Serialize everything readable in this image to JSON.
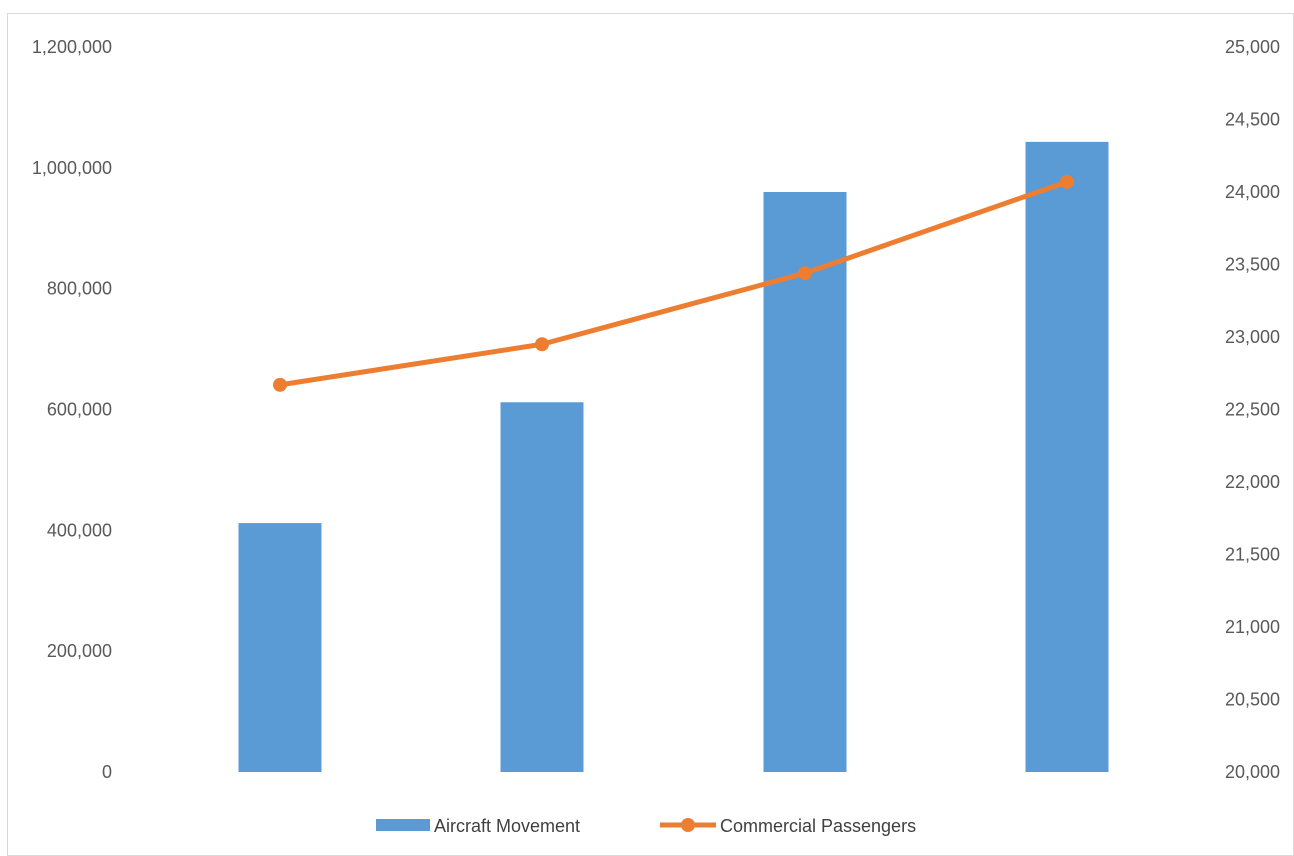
{
  "chart_data": {
    "type": "bar",
    "combo": "bar-line-dual-axis",
    "categories": [
      "",
      "",
      "",
      ""
    ],
    "series": [
      {
        "name": "Aircraft Movement",
        "type": "bar",
        "axis": "left",
        "color": "#5b9bd5",
        "values": [
          412000,
          612000,
          960000,
          1043000
        ]
      },
      {
        "name": "Commercial Passengers",
        "type": "line",
        "axis": "right",
        "color": "#ed7d31",
        "values": [
          22670,
          22950,
          23440,
          24070
        ]
      }
    ],
    "y_left": {
      "min": 0,
      "max": 1200000,
      "ticks": [
        0,
        200000,
        400000,
        600000,
        800000,
        1000000,
        1200000
      ],
      "tick_labels": [
        "0",
        "200,000",
        "400,000",
        "600,000",
        "800,000",
        "1,000,000",
        "1,200,000"
      ]
    },
    "y_right": {
      "min": 20000,
      "max": 25000,
      "ticks": [
        20000,
        20500,
        21000,
        21500,
        22000,
        22500,
        23000,
        23500,
        24000,
        24500,
        25000
      ],
      "tick_labels": [
        "20,000",
        "20,500",
        "21,000",
        "21,500",
        "22,000",
        "22,500",
        "23,000",
        "23,500",
        "24,000",
        "24,500",
        "25,000"
      ]
    },
    "grid": false,
    "legend": {
      "position": "bottom",
      "entries": [
        "Aircraft Movement",
        "Commercial Passengers"
      ]
    }
  }
}
